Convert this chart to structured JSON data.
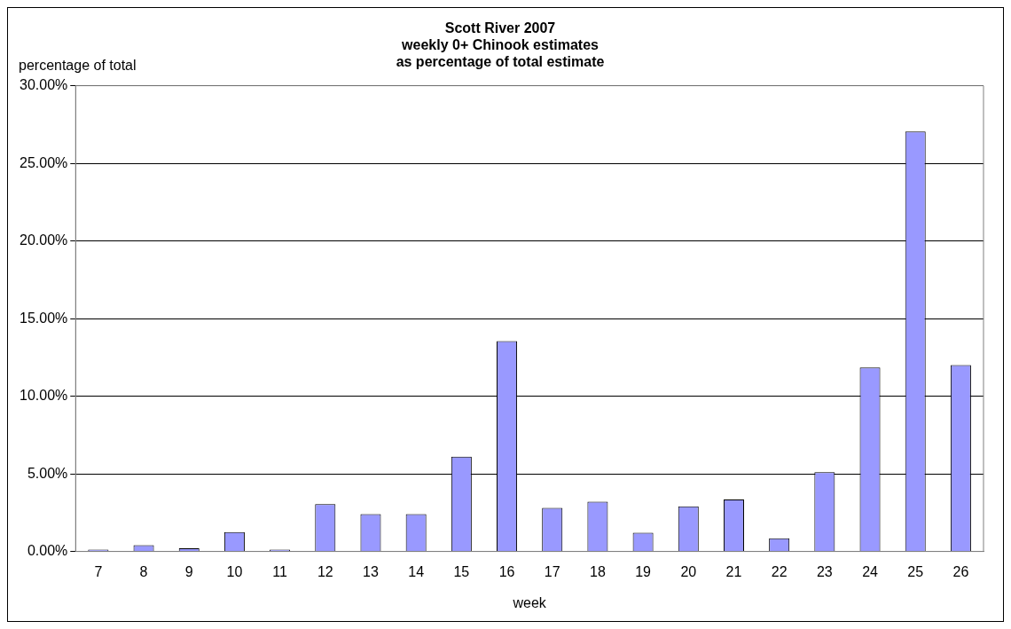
{
  "chart_data": {
    "type": "bar",
    "title": "Scott River 2007\nweekly 0+ Chinook estimates\nas percentage of total estimate",
    "ylabel": "percentage of total",
    "xlabel": "week",
    "categories": [
      "7",
      "8",
      "9",
      "10",
      "11",
      "12",
      "13",
      "14",
      "15",
      "16",
      "17",
      "18",
      "19",
      "20",
      "21",
      "22",
      "23",
      "24",
      "25",
      "26"
    ],
    "values": [
      0.1,
      0.4,
      0.2,
      1.25,
      0.1,
      3.05,
      2.4,
      2.4,
      6.1,
      13.55,
      2.8,
      3.2,
      1.2,
      2.9,
      3.35,
      0.85,
      5.1,
      11.85,
      27.05,
      12.0
    ],
    "color": "#9999ff",
    "ylim": [
      0,
      30
    ],
    "yticks": [
      {
        "value": 0,
        "label": "0.00%"
      },
      {
        "value": 5,
        "label": "5.00%"
      },
      {
        "value": 10,
        "label": "10.00%"
      },
      {
        "value": 15,
        "label": "15.00%"
      },
      {
        "value": 20,
        "label": "20.00%"
      },
      {
        "value": 25,
        "label": "25.00%"
      },
      {
        "value": 30,
        "label": "30.00%"
      }
    ],
    "grid": "y",
    "legend": false
  }
}
